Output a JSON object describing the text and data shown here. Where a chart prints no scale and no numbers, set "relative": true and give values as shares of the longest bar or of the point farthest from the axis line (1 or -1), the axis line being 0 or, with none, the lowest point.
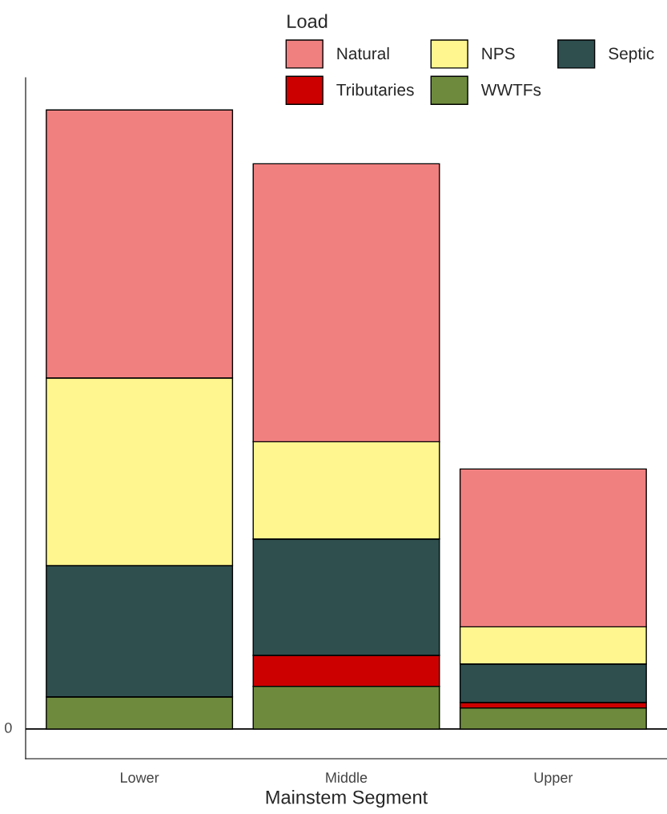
{
  "chart_data": {
    "type": "bar",
    "stacked": true,
    "relative": true,
    "xlabel": "Mainstem Segment",
    "legend_title": "Load",
    "legend": "top",
    "categories": [
      "Lower",
      "Middle",
      "Upper"
    ],
    "ref_lines": [
      {
        "axis": "y",
        "value": 0,
        "color": "#000000",
        "label": "0"
      }
    ],
    "series": [
      {
        "name": "WWTFs",
        "color": "#6e8b3d",
        "values": [
          0.052,
          0.069,
          0.034
        ]
      },
      {
        "name": "Tributaries",
        "color": "#cd0000",
        "values": [
          0,
          0.05,
          0.009
        ]
      },
      {
        "name": "Septic",
        "color": "#2f4f4f",
        "values": [
          0.212,
          0.188,
          0.062
        ]
      },
      {
        "name": "NPS",
        "color": "#fff68f",
        "values": [
          0.303,
          0.157,
          0.06
        ]
      },
      {
        "name": "Natural",
        "color": "#f08080",
        "values": [
          0.433,
          0.449,
          0.255
        ]
      }
    ]
  }
}
